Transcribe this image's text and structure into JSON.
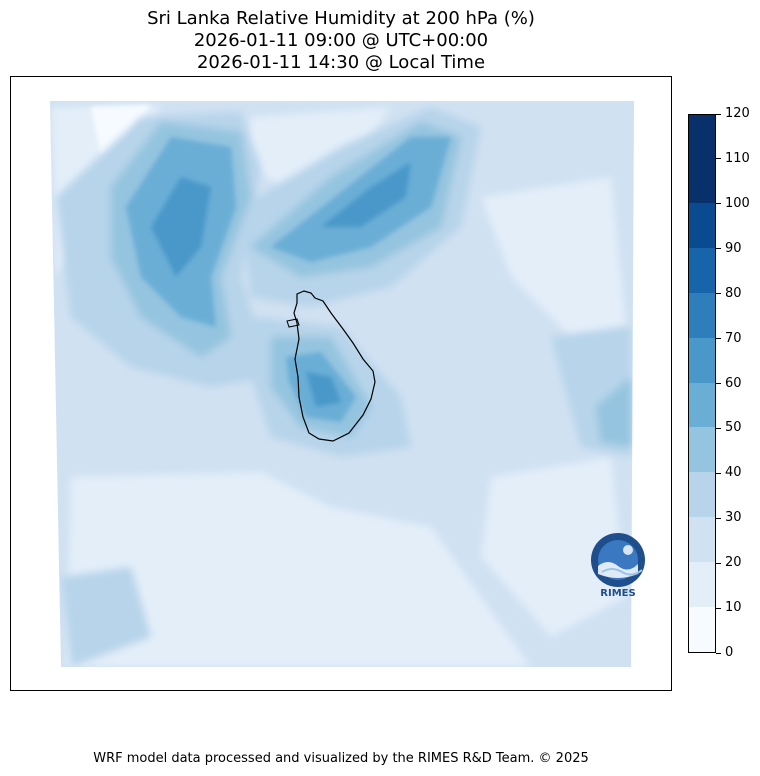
{
  "title": {
    "line1": "Sri Lanka Relative Humidity at 200 hPa (%)",
    "line2": "2026-01-11 09:00 @ UTC+00:00",
    "line3": "2026-01-11 14:30 @ Local Time"
  },
  "colorbar": {
    "ticks": [
      "0",
      "10",
      "20",
      "30",
      "40",
      "50",
      "60",
      "70",
      "80",
      "90",
      "100",
      "110",
      "120"
    ],
    "colors": [
      "#f7fbff",
      "#e3eef9",
      "#d0e1f2",
      "#b7d4ea",
      "#94c4df",
      "#6aaed6",
      "#4a98c9",
      "#2e7ebc",
      "#1764ab",
      "#0a4a90",
      "#08306b",
      "#08306b"
    ]
  },
  "map": {
    "shade_colors": {
      "base": "#d0e1f2",
      "light": "#e3eef9",
      "lightest": "#f7fbff",
      "mid": "#b7d4ea",
      "medium": "#94c4df",
      "dark": "#6aaed6",
      "darker": "#4a98c9"
    },
    "coastline_color": "#000000"
  },
  "logo": {
    "text": "RIMES"
  },
  "footer": {
    "credit": "WRF model data processed and visualized by the RIMES R&D Team. © 2025"
  }
}
